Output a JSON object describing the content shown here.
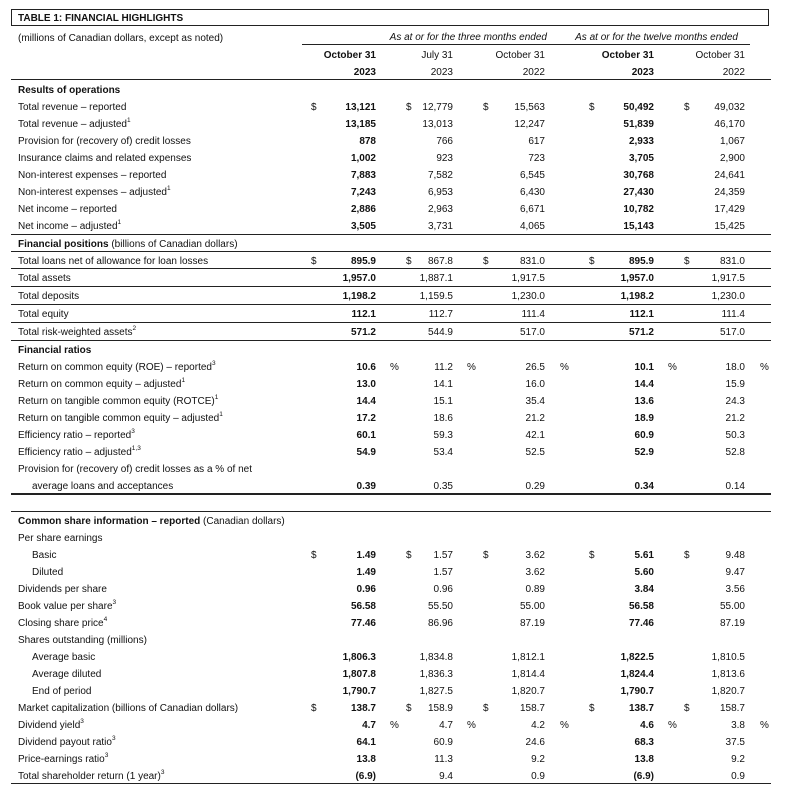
{
  "title": "TABLE 1: FINANCIAL HIGHLIGHTS",
  "subtitle": "(millions of Canadian dollars, except as noted)",
  "groups": [
    "As at or for the three months ended",
    "As at or for the twelve months ended"
  ],
  "columns": [
    {
      "month": "October 31",
      "year": "2023",
      "bold": true
    },
    {
      "month": "July 31",
      "year": "2023",
      "bold": false
    },
    {
      "month": "October 31",
      "year": "2022",
      "bold": false
    },
    {
      "month": "October 31",
      "year": "2023",
      "bold": true
    },
    {
      "month": "October 31",
      "year": "2022",
      "bold": false
    }
  ],
  "currency_symbol": "$",
  "percent_symbol": "%",
  "rows": [
    {
      "kind": "section",
      "label": "Results of operations"
    },
    {
      "kind": "row",
      "label": "Total revenue – reported",
      "dollar": true,
      "values": [
        "13,121",
        "12,779",
        "15,563",
        "50,492",
        "49,032"
      ]
    },
    {
      "kind": "row",
      "label": "Total revenue – adjusted",
      "sup": "1",
      "values": [
        "13,185",
        "13,013",
        "12,247",
        "51,839",
        "46,170"
      ]
    },
    {
      "kind": "row",
      "label": "Provision for (recovery of) credit losses",
      "values": [
        "878",
        "766",
        "617",
        "2,933",
        "1,067"
      ]
    },
    {
      "kind": "row",
      "label": "Insurance claims and related expenses",
      "values": [
        "1,002",
        "923",
        "723",
        "3,705",
        "2,900"
      ]
    },
    {
      "kind": "row",
      "label": "Non-interest expenses – reported",
      "values": [
        "7,883",
        "7,582",
        "6,545",
        "30,768",
        "24,641"
      ]
    },
    {
      "kind": "row",
      "label": "Non-interest expenses – adjusted",
      "sup": "1",
      "values": [
        "7,243",
        "6,953",
        "6,430",
        "27,430",
        "24,359"
      ]
    },
    {
      "kind": "row",
      "label": "Net income – reported",
      "values": [
        "2,886",
        "2,963",
        "6,671",
        "10,782",
        "17,429"
      ]
    },
    {
      "kind": "row",
      "label": "Net income – adjusted",
      "sup": "1",
      "values": [
        "3,505",
        "3,731",
        "4,065",
        "15,143",
        "15,425"
      ]
    },
    {
      "kind": "section-top",
      "label": "Financial positions",
      "suffix": " (billions of Canadian dollars)"
    },
    {
      "kind": "boxed-first",
      "label": "Total loans net of allowance for loan losses",
      "dollar": true,
      "values": [
        "895.9",
        "867.8",
        "831.0",
        "895.9",
        "831.0"
      ]
    },
    {
      "kind": "boxed",
      "label": "Total assets",
      "values": [
        "1,957.0",
        "1,887.1",
        "1,917.5",
        "1,957.0",
        "1,917.5"
      ]
    },
    {
      "kind": "boxed",
      "label": "Total deposits",
      "values": [
        "1,198.2",
        "1,159.5",
        "1,230.0",
        "1,198.2",
        "1,230.0"
      ]
    },
    {
      "kind": "boxed",
      "label": "Total equity",
      "values": [
        "112.1",
        "112.7",
        "111.4",
        "112.1",
        "111.4"
      ]
    },
    {
      "kind": "boxed",
      "label": "Total risk-weighted assets",
      "sup": "2",
      "values": [
        "571.2",
        "544.9",
        "517.0",
        "571.2",
        "517.0"
      ]
    },
    {
      "kind": "section",
      "label": "Financial ratios"
    },
    {
      "kind": "row",
      "label": "Return on common equity (ROE) – reported",
      "sup": "3",
      "pct": true,
      "values": [
        "10.6",
        "11.2",
        "26.5",
        "10.1",
        "18.0"
      ]
    },
    {
      "kind": "row",
      "label": "Return on common equity – adjusted",
      "sup": "1",
      "values": [
        "13.0",
        "14.1",
        "16.0",
        "14.4",
        "15.9"
      ]
    },
    {
      "kind": "row",
      "label": "Return on tangible common equity (ROTCE)",
      "sup": "1",
      "values": [
        "14.4",
        "15.1",
        "35.4",
        "13.6",
        "24.3"
      ]
    },
    {
      "kind": "row",
      "label": "Return on tangible common equity – adjusted",
      "sup": "1",
      "values": [
        "17.2",
        "18.6",
        "21.2",
        "18.9",
        "21.2"
      ]
    },
    {
      "kind": "row",
      "label": "Efficiency ratio – reported",
      "sup": "3",
      "values": [
        "60.1",
        "59.3",
        "42.1",
        "60.9",
        "50.3"
      ]
    },
    {
      "kind": "row",
      "label": "Efficiency ratio – adjusted",
      "sup": "1,3",
      "values": [
        "54.9",
        "53.4",
        "52.5",
        "52.9",
        "52.8"
      ]
    },
    {
      "kind": "row",
      "label": "Provision for (recovery of) credit losses as a % of net"
    },
    {
      "kind": "row-last",
      "label": "average loans and acceptances",
      "indent": true,
      "values": [
        "0.39",
        "0.35",
        "0.29",
        "0.34",
        "0.14"
      ]
    },
    {
      "kind": "spacer"
    },
    {
      "kind": "section",
      "label": "Common share information – reported",
      "suffix": " (Canadian dollars)"
    },
    {
      "kind": "row",
      "label": "Per share earnings"
    },
    {
      "kind": "row",
      "label": "Basic",
      "indent": true,
      "dollar": true,
      "values": [
        "1.49",
        "1.57",
        "3.62",
        "5.61",
        "9.48"
      ]
    },
    {
      "kind": "row",
      "label": "Diluted",
      "indent": true,
      "values": [
        "1.49",
        "1.57",
        "3.62",
        "5.60",
        "9.47"
      ]
    },
    {
      "kind": "row",
      "label": "Dividends per share",
      "values": [
        "0.96",
        "0.96",
        "0.89",
        "3.84",
        "3.56"
      ]
    },
    {
      "kind": "row",
      "label": "Book value per share",
      "sup": "3",
      "values": [
        "56.58",
        "55.50",
        "55.00",
        "56.58",
        "55.00"
      ]
    },
    {
      "kind": "row",
      "label": "Closing share price",
      "sup": "4",
      "values": [
        "77.46",
        "86.96",
        "87.19",
        "77.46",
        "87.19"
      ]
    },
    {
      "kind": "row",
      "label": "Shares outstanding (millions)"
    },
    {
      "kind": "row",
      "label": "Average basic",
      "indent": true,
      "values": [
        "1,806.3",
        "1,834.8",
        "1,812.1",
        "1,822.5",
        "1,810.5"
      ]
    },
    {
      "kind": "row",
      "label": "Average diluted",
      "indent": true,
      "values": [
        "1,807.8",
        "1,836.3",
        "1,814.4",
        "1,824.4",
        "1,813.6"
      ]
    },
    {
      "kind": "row",
      "label": "End of period",
      "indent": true,
      "values": [
        "1,790.7",
        "1,827.5",
        "1,820.7",
        "1,790.7",
        "1,820.7"
      ]
    },
    {
      "kind": "row",
      "label": "Market capitalization (billions of Canadian dollars)",
      "dollar": true,
      "values": [
        "138.7",
        "158.9",
        "158.7",
        "138.7",
        "158.7"
      ]
    },
    {
      "kind": "row",
      "label": "Dividend yield",
      "sup": "3",
      "pct": true,
      "values": [
        "4.7",
        "4.7",
        "4.2",
        "4.6",
        "3.8"
      ]
    },
    {
      "kind": "row",
      "label": "Dividend payout ratio",
      "sup": "3",
      "values": [
        "64.1",
        "60.9",
        "24.6",
        "68.3",
        "37.5"
      ]
    },
    {
      "kind": "row",
      "label": "Price-earnings ratio",
      "sup": "3",
      "values": [
        "13.8",
        "11.3",
        "9.2",
        "13.8",
        "9.2"
      ]
    },
    {
      "kind": "row-last",
      "label": "Total shareholder return (1 year)",
      "sup": "3",
      "values": [
        "(6.9)",
        "9.4",
        "0.9",
        "(6.9)",
        "0.9"
      ]
    }
  ]
}
